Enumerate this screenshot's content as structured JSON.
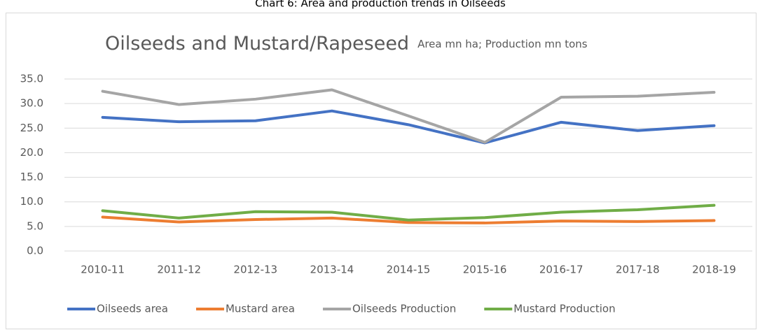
{
  "caption": "Chart 6: Area and production trends in Oilseeds",
  "chart_data": {
    "type": "line",
    "title": "Oilseeds and Mustard/Rapeseed",
    "subtitle": "Area mn ha; Production mn tons",
    "categories": [
      "2010-11",
      "2011-12",
      "2012-13",
      "2013-14",
      "2014-15",
      "2015-16",
      "2016-17",
      "2017-18",
      "2018-19"
    ],
    "series": [
      {
        "name": "Oilseeds area",
        "color": "#4472c4",
        "values": [
          27.2,
          26.3,
          26.5,
          28.5,
          25.7,
          22.0,
          26.2,
          24.5,
          25.5
        ]
      },
      {
        "name": "Mustard area",
        "color": "#ed7d31",
        "values": [
          6.9,
          5.9,
          6.4,
          6.7,
          5.8,
          5.7,
          6.1,
          6.0,
          6.2
        ]
      },
      {
        "name": "Oilseeds Production",
        "color": "#a5a5a5",
        "values": [
          32.5,
          29.8,
          30.9,
          32.8,
          27.5,
          22.1,
          31.3,
          31.5,
          32.3
        ]
      },
      {
        "name": "Mustard Production",
        "color": "#70ad47",
        "values": [
          8.2,
          6.7,
          8.0,
          7.9,
          6.3,
          6.8,
          7.9,
          8.4,
          9.3
        ]
      }
    ],
    "ylim": [
      0,
      35
    ],
    "yticks": [
      {
        "value": 0,
        "label": "0.0"
      },
      {
        "value": 5,
        "label": "5.0"
      },
      {
        "value": 10,
        "label": "10.0"
      },
      {
        "value": 15,
        "label": "15.0"
      },
      {
        "value": 20,
        "label": "20.0"
      },
      {
        "value": 25,
        "label": "25.0"
      },
      {
        "value": 30,
        "label": "30.0"
      },
      {
        "value": 35,
        "label": "35.0"
      }
    ],
    "grid": true,
    "legend": "bottom"
  }
}
